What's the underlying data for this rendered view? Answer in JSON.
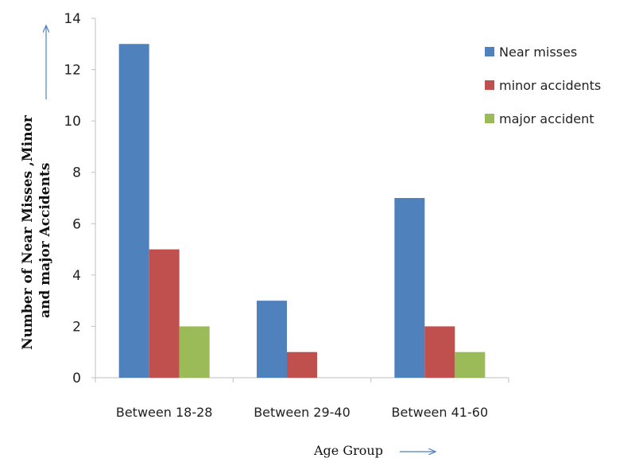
{
  "chart_data": {
    "type": "bar",
    "categories": [
      "Between 18-28",
      "Between 29-40",
      "Between 41-60"
    ],
    "series": [
      {
        "name": "Near misses",
        "values": [
          13,
          3,
          7
        ],
        "color": "#4f81bd"
      },
      {
        "name": "minor accidents",
        "values": [
          5,
          1,
          2
        ],
        "color": "#c0504d"
      },
      {
        "name": "major accident",
        "values": [
          2,
          0,
          1
        ],
        "color": "#9bbb59"
      }
    ],
    "yticks": [
      "0",
      "2",
      "4",
      "6",
      "8",
      "10",
      "12",
      "14"
    ],
    "ylim": [
      0,
      14
    ],
    "ylabel_line1": "Number of Near Misses ,Minor",
    "ylabel_line2": "and major Accidents",
    "xlabel": "Age Group",
    "legend_position": "right",
    "grid": false
  }
}
